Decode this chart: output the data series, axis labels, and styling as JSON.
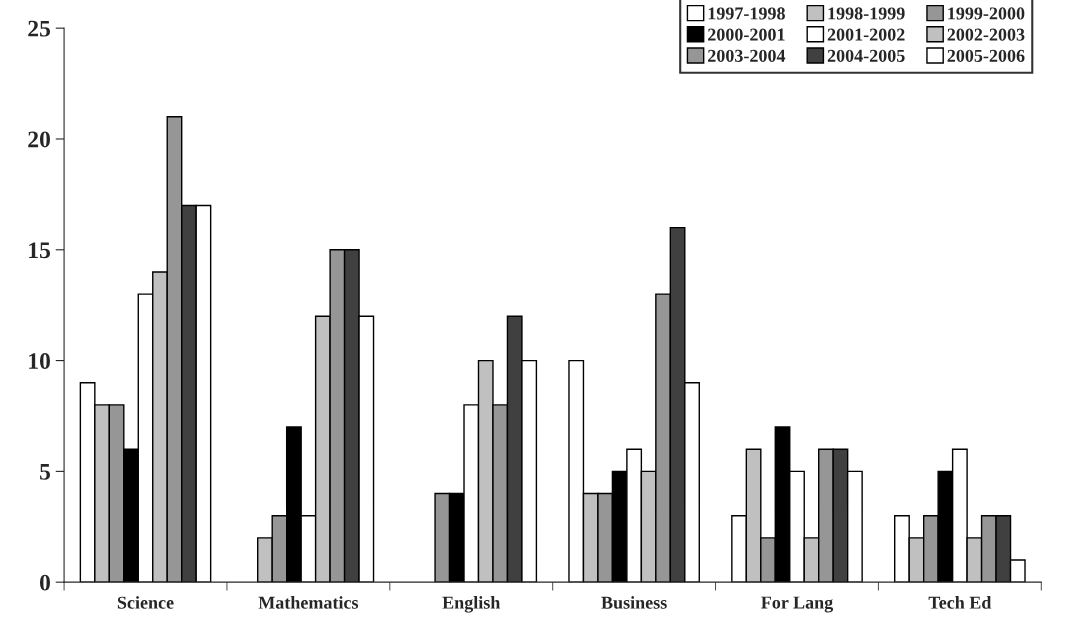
{
  "chart_data": {
    "type": "bar",
    "categories": [
      "Science",
      "Mathematics",
      "English",
      "Business",
      "For Lang",
      "Tech Ed"
    ],
    "series": [
      {
        "name": "1997-1998",
        "color": "#ffffff",
        "values": [
          9,
          null,
          null,
          10,
          3,
          3
        ]
      },
      {
        "name": "1998-1999",
        "color": "#c0c0c0",
        "values": [
          8,
          2,
          null,
          4,
          6,
          2
        ]
      },
      {
        "name": "1999-2000",
        "color": "#969696",
        "values": [
          8,
          3,
          4,
          4,
          2,
          3
        ]
      },
      {
        "name": "2000-2001",
        "color": "#000000",
        "values": [
          6,
          7,
          4,
          5,
          7,
          5
        ]
      },
      {
        "name": "2001-2002",
        "color": "#ffffff",
        "values": [
          13,
          3,
          8,
          6,
          5,
          6
        ]
      },
      {
        "name": "2002-2003",
        "color": "#c0c0c0",
        "values": [
          14,
          12,
          10,
          5,
          2,
          2
        ]
      },
      {
        "name": "2003-2004",
        "color": "#969696",
        "values": [
          21,
          15,
          8,
          13,
          6,
          3
        ]
      },
      {
        "name": "2004-2005",
        "color": "#404040",
        "values": [
          17,
          15,
          12,
          16,
          6,
          3
        ]
      },
      {
        "name": "2005-2006",
        "color": "#ffffff",
        "values": [
          17,
          12,
          10,
          9,
          5,
          1
        ]
      }
    ],
    "ylim": [
      0,
      25
    ],
    "yticks": [
      0,
      5,
      10,
      15,
      20,
      25
    ],
    "grid": false,
    "legend": "top right"
  }
}
